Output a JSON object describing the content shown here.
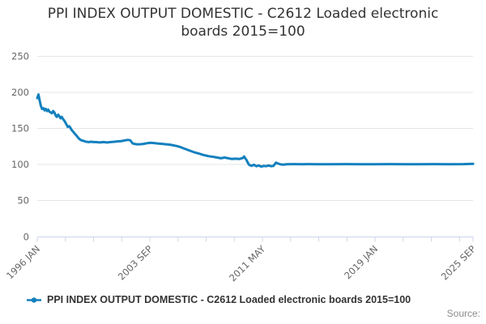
{
  "header": {
    "title_lines": [
      "PPI INDEX OUTPUT DOMESTIC - C2612 Loaded electronic",
      "boards 2015=100"
    ]
  },
  "legend": {
    "label": "PPI INDEX OUTPUT DOMESTIC - C2612 Loaded electronic boards 2015=100"
  },
  "footer": {
    "source_label": "Source:"
  },
  "colors": {
    "line": "#1380BE",
    "grid": "#E6E6E6",
    "axis": "#CCD6EB",
    "tick_label": "#666666",
    "title": "#333333",
    "legend_text": "#333333",
    "source_text": "#8C8C8C"
  },
  "chart_data": {
    "type": "line",
    "title": "PPI INDEX OUTPUT DOMESTIC - C2612 Loaded electronic boards 2015=100",
    "xlabel": "",
    "ylabel": "",
    "ylim": [
      0,
      250
    ],
    "y_ticks": [
      0,
      50,
      100,
      150,
      200,
      250
    ],
    "grid": "horizontal-only",
    "legend_position": "bottom-left",
    "x_axis": {
      "start_label": "1996 JAN",
      "end_label": "2025 SEP",
      "total_months": 356,
      "minor_tick_interval_months": 23,
      "label_months": [
        0,
        92,
        184,
        276,
        356
      ],
      "labels": [
        "1996 JAN",
        "2003 SEP",
        "2011 MAY",
        "2019 JAN",
        "2025 SEP"
      ]
    },
    "series": [
      {
        "name": "PPI INDEX OUTPUT DOMESTIC - C2612 Loaded electronic boards 2015=100",
        "color": "#1380BE",
        "points": [
          [
            1996.0,
            192
          ],
          [
            1996.08,
            197
          ],
          [
            1996.17,
            188
          ],
          [
            1996.25,
            181
          ],
          [
            1996.33,
            177
          ],
          [
            1996.42,
            178
          ],
          [
            1996.5,
            175
          ],
          [
            1996.58,
            177
          ],
          [
            1996.67,
            174
          ],
          [
            1996.75,
            176
          ],
          [
            1996.83,
            173
          ],
          [
            1996.92,
            172
          ],
          [
            1997.0,
            171
          ],
          [
            1997.08,
            174
          ],
          [
            1997.17,
            172
          ],
          [
            1997.25,
            168
          ],
          [
            1997.33,
            166
          ],
          [
            1997.42,
            169
          ],
          [
            1997.5,
            167
          ],
          [
            1997.58,
            164
          ],
          [
            1997.67,
            166
          ],
          [
            1997.75,
            163
          ],
          [
            1997.83,
            161
          ],
          [
            1997.92,
            158
          ],
          [
            1998.0,
            155
          ],
          [
            1998.08,
            152
          ],
          [
            1998.17,
            153
          ],
          [
            1998.25,
            151
          ],
          [
            1998.33,
            148
          ],
          [
            1998.42,
            146
          ],
          [
            1998.5,
            144
          ],
          [
            1998.58,
            142
          ],
          [
            1998.67,
            140
          ],
          [
            1998.75,
            138
          ],
          [
            1998.83,
            136
          ],
          [
            1998.92,
            134.5
          ],
          [
            1999.0,
            133.5
          ],
          [
            1999.17,
            132.5
          ],
          [
            1999.33,
            131.5
          ],
          [
            1999.5,
            131
          ],
          [
            1999.67,
            131.5
          ],
          [
            1999.83,
            131
          ],
          [
            2000.0,
            131
          ],
          [
            2000.25,
            130.5
          ],
          [
            2000.5,
            131
          ],
          [
            2000.75,
            130.5
          ],
          [
            2001.0,
            131
          ],
          [
            2001.25,
            131.5
          ],
          [
            2001.5,
            132
          ],
          [
            2001.75,
            132.5
          ],
          [
            2002.0,
            133.5
          ],
          [
            2002.17,
            134
          ],
          [
            2002.33,
            133.5
          ],
          [
            2002.5,
            129
          ],
          [
            2002.75,
            128
          ],
          [
            2003.0,
            128
          ],
          [
            2003.25,
            128.5
          ],
          [
            2003.5,
            129.5
          ],
          [
            2003.75,
            130
          ],
          [
            2004.0,
            129.5
          ],
          [
            2004.25,
            129
          ],
          [
            2004.5,
            128.5
          ],
          [
            2004.75,
            128
          ],
          [
            2005.0,
            127.5
          ],
          [
            2005.25,
            126.5
          ],
          [
            2005.5,
            125.5
          ],
          [
            2005.75,
            124
          ],
          [
            2006.0,
            122
          ],
          [
            2006.33,
            119.5
          ],
          [
            2006.67,
            117
          ],
          [
            2007.0,
            115
          ],
          [
            2007.33,
            113
          ],
          [
            2007.67,
            111.5
          ],
          [
            2008.0,
            110.5
          ],
          [
            2008.25,
            109.5
          ],
          [
            2008.5,
            108.5
          ],
          [
            2008.75,
            109.5
          ],
          [
            2009.0,
            108.5
          ],
          [
            2009.25,
            107.5
          ],
          [
            2009.5,
            108
          ],
          [
            2009.75,
            107.5
          ],
          [
            2010.0,
            109
          ],
          [
            2010.08,
            111
          ],
          [
            2010.25,
            106
          ],
          [
            2010.33,
            102.5
          ],
          [
            2010.42,
            99.5
          ],
          [
            2010.58,
            98
          ],
          [
            2010.75,
            99.5
          ],
          [
            2010.92,
            97.5
          ],
          [
            2011.08,
            98.5
          ],
          [
            2011.25,
            97
          ],
          [
            2011.42,
            98
          ],
          [
            2011.58,
            97.5
          ],
          [
            2011.75,
            98.5
          ],
          [
            2011.92,
            97.5
          ],
          [
            2012.08,
            98
          ],
          [
            2012.25,
            102.5
          ],
          [
            2012.42,
            101
          ],
          [
            2012.58,
            100
          ],
          [
            2012.75,
            99.8
          ],
          [
            2013.0,
            100.3
          ],
          [
            2013.5,
            100.4
          ],
          [
            2014.0,
            100.3
          ],
          [
            2014.5,
            100.4
          ],
          [
            2015.0,
            100.3
          ],
          [
            2016.0,
            100.3
          ],
          [
            2017.0,
            100.4
          ],
          [
            2018.0,
            100.3
          ],
          [
            2019.0,
            100.3
          ],
          [
            2020.0,
            100.4
          ],
          [
            2021.0,
            100.3
          ],
          [
            2022.0,
            100.3
          ],
          [
            2023.0,
            100.4
          ],
          [
            2024.0,
            100.3
          ],
          [
            2025.0,
            100.5
          ],
          [
            2025.67,
            100.9
          ]
        ]
      }
    ]
  }
}
